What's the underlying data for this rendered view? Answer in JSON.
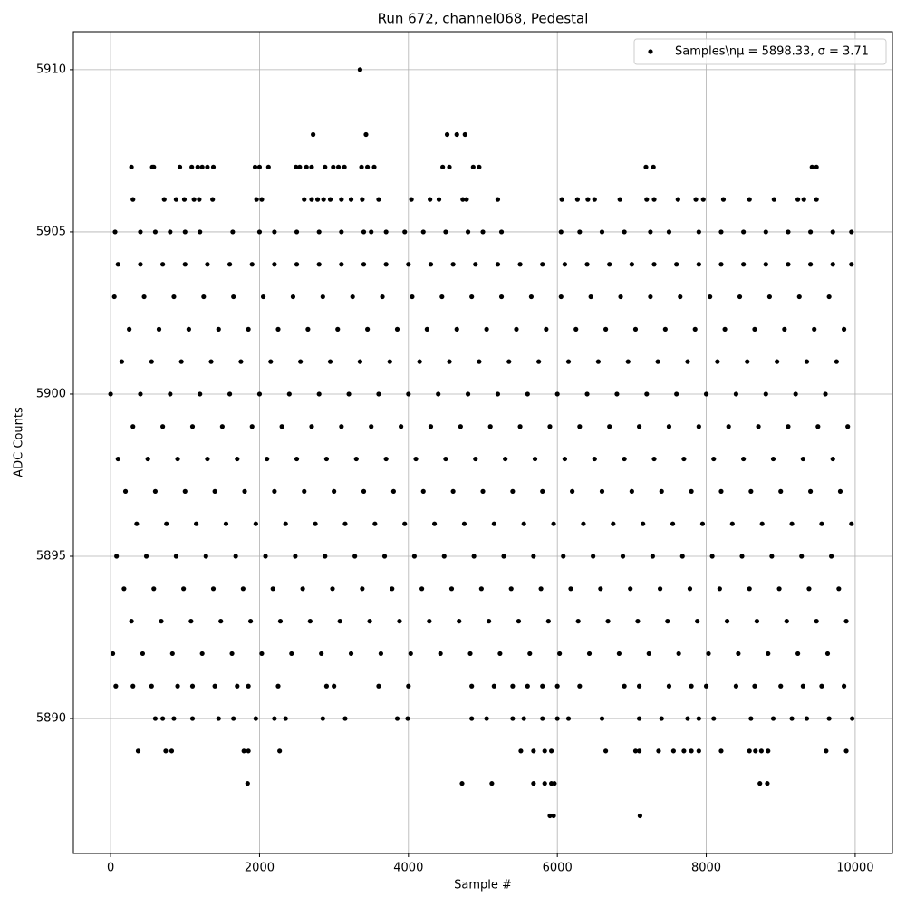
{
  "chart_data": {
    "type": "scatter",
    "title": "Run 672, channel068, Pedestal",
    "x_label": "Sample #",
    "y_label": "ADC Counts",
    "xlim": [
      -500,
      10500
    ],
    "ylim": [
      5885.84,
      5911.17
    ],
    "xticks": [
      0,
      2000,
      4000,
      6000,
      8000,
      10000
    ],
    "yticks": [
      5890,
      5895,
      5900,
      5905,
      5910
    ],
    "grid": true,
    "legend": "upper-right",
    "series": [
      {
        "name": "Samples\\nμ = 5898.33, σ = 3.71",
        "color": "#000000",
        "x": [
          3350,
          2720,
          3430,
          4520,
          4650,
          4760,
          5900,
          5950,
          7110,
          1840,
          4720,
          5120,
          5680,
          5830,
          5920,
          5960,
          8720,
          8820,
          370,
          740,
          820,
          1790,
          1850,
          2270,
          5510,
          5680,
          5830,
          5920,
          6650,
          7050,
          7100,
          7360,
          7560,
          7700,
          7800,
          7900,
          8200,
          8580,
          8660,
          8740,
          8830,
          9610,
          9880,
          280,
          560,
          580,
          930,
          1090,
          1170,
          1230,
          1300,
          1380,
          1940,
          2000,
          2120,
          2490,
          2540,
          2630,
          2700,
          2880,
          2990,
          3060,
          3140,
          3370,
          3450,
          3540,
          4460,
          4550,
          4870,
          4950,
          7190,
          7290,
          9420,
          9480,
          300,
          720,
          880,
          990,
          1120,
          1190,
          1370,
          1960,
          2030,
          2600,
          2700,
          2780,
          2860,
          2950,
          3100,
          3230,
          3380,
          3600,
          4040,
          4290,
          4410,
          4730,
          4780,
          5200,
          6060,
          6270,
          6410,
          6500,
          6840,
          7200,
          7300,
          7620,
          7860,
          7960,
          8230,
          8580,
          8910,
          9230,
          9310,
          9480,
          60,
          400,
          600,
          800,
          1000,
          1200,
          1640,
          2000,
          2200,
          2500,
          2800,
          3100,
          3400,
          3500,
          3700,
          3950,
          4200,
          4500,
          4800,
          5000,
          5250,
          6050,
          6300,
          6600,
          6900,
          7250,
          7500,
          7900,
          8200,
          8500,
          8800,
          9100,
          9400,
          9700,
          9950,
          100,
          400,
          700,
          1000,
          1300,
          1600,
          1900,
          2200,
          2500,
          2800,
          3100,
          3400,
          3700,
          4000,
          4300,
          4600,
          4900,
          5200,
          5500,
          5800,
          6100,
          6400,
          6700,
          7000,
          7300,
          7600,
          7900,
          8200,
          8500,
          8800,
          9100,
          9400,
          9700,
          9950,
          50,
          450,
          850,
          1250,
          1650,
          2050,
          2450,
          2850,
          3250,
          3650,
          4050,
          4450,
          4850,
          5250,
          5650,
          6050,
          6450,
          6850,
          7250,
          7650,
          8050,
          8450,
          8850,
          9250,
          9650,
          250,
          650,
          1050,
          1450,
          1850,
          2250,
          2650,
          3050,
          3450,
          3850,
          4250,
          4650,
          5050,
          5450,
          5850,
          6250,
          6650,
          7050,
          7450,
          7850,
          8250,
          8650,
          9050,
          9450,
          9850,
          150,
          550,
          950,
          1350,
          1750,
          2150,
          2550,
          2950,
          3350,
          3750,
          4150,
          4550,
          4950,
          5350,
          5750,
          6150,
          6550,
          6950,
          7350,
          7750,
          8150,
          8550,
          8950,
          9350,
          9750,
          0,
          400,
          800,
          1200,
          1600,
          2000,
          2400,
          2800,
          3200,
          3600,
          4000,
          4400,
          4800,
          5200,
          5600,
          6000,
          6400,
          6800,
          7200,
          7600,
          8000,
          8400,
          8800,
          9200,
          9600,
          300,
          700,
          1100,
          1500,
          1900,
          2300,
          2700,
          3100,
          3500,
          3900,
          4300,
          4700,
          5100,
          5500,
          5900,
          6300,
          6700,
          7100,
          7500,
          7900,
          8300,
          8700,
          9100,
          9500,
          9900,
          100,
          500,
          900,
          1300,
          1700,
          2100,
          2500,
          2900,
          3300,
          3700,
          4100,
          4500,
          4900,
          5300,
          5700,
          6100,
          6500,
          6900,
          7300,
          7700,
          8100,
          8500,
          8900,
          9300,
          9700,
          200,
          600,
          1000,
          1400,
          1800,
          2200,
          2600,
          3000,
          3400,
          3800,
          4200,
          4600,
          5000,
          5400,
          5800,
          6200,
          6600,
          7000,
          7400,
          7800,
          8200,
          8600,
          9000,
          9400,
          9800,
          350,
          750,
          1150,
          1550,
          1950,
          2350,
          2750,
          3150,
          3550,
          3950,
          4350,
          4750,
          5150,
          5550,
          5950,
          6350,
          6750,
          7150,
          7550,
          7950,
          8350,
          8750,
          9150,
          9550,
          9950,
          80,
          480,
          880,
          1280,
          1680,
          2080,
          2480,
          2880,
          3280,
          3680,
          4080,
          4480,
          4880,
          5280,
          5680,
          6080,
          6480,
          6880,
          7280,
          7680,
          8080,
          8480,
          8880,
          9280,
          9680,
          180,
          580,
          980,
          1380,
          1780,
          2180,
          2580,
          2980,
          3380,
          3780,
          4180,
          4580,
          4980,
          5380,
          5780,
          6180,
          6580,
          6980,
          7380,
          7780,
          8180,
          8580,
          8980,
          9380,
          9780,
          280,
          680,
          1080,
          1480,
          1880,
          2280,
          2680,
          3080,
          3480,
          3880,
          4280,
          4680,
          5080,
          5480,
          5880,
          6280,
          6680,
          7080,
          7480,
          7880,
          8280,
          8680,
          9080,
          9480,
          9880,
          30,
          430,
          830,
          1230,
          1630,
          2030,
          2430,
          2830,
          3230,
          3630,
          4030,
          4430,
          4830,
          5230,
          5630,
          6030,
          6430,
          6830,
          7230,
          7630,
          8030,
          8430,
          8830,
          9230,
          9630,
          70,
          300,
          550,
          900,
          1100,
          1400,
          1700,
          1850,
          2250,
          2900,
          3000,
          3600,
          4000,
          4850,
          5150,
          5400,
          5600,
          5800,
          6000,
          6300,
          6900,
          7100,
          7500,
          7800,
          8000,
          8400,
          8650,
          9000,
          9300,
          9550,
          9850,
          600,
          700,
          850,
          1100,
          1450,
          1650,
          1950,
          2200,
          2350,
          2850,
          3150,
          3850,
          3990,
          4850,
          5050,
          5400,
          5550,
          5800,
          6000,
          6150,
          6600,
          7100,
          7400,
          7750,
          7900,
          8100,
          8600,
          8900,
          9150,
          9350,
          9650,
          9960
        ],
        "values": [
          5910,
          5908,
          5908,
          5908,
          5908,
          5908,
          5887,
          5887,
          5887,
          5888,
          5888,
          5888,
          5888,
          5888,
          5888,
          5888,
          5888,
          5888,
          5889,
          5889,
          5889,
          5889,
          5889,
          5889,
          5889,
          5889,
          5889,
          5889,
          5889,
          5889,
          5889,
          5889,
          5889,
          5889,
          5889,
          5889,
          5889,
          5889,
          5889,
          5889,
          5889,
          5889,
          5889,
          5907,
          5907,
          5907,
          5907,
          5907,
          5907,
          5907,
          5907,
          5907,
          5907,
          5907,
          5907,
          5907,
          5907,
          5907,
          5907,
          5907,
          5907,
          5907,
          5907,
          5907,
          5907,
          5907,
          5907,
          5907,
          5907,
          5907,
          5907,
          5907,
          5907,
          5907,
          5906,
          5906,
          5906,
          5906,
          5906,
          5906,
          5906,
          5906,
          5906,
          5906,
          5906,
          5906,
          5906,
          5906,
          5906,
          5906,
          5906,
          5906,
          5906,
          5906,
          5906,
          5906,
          5906,
          5906,
          5906,
          5906,
          5906,
          5906,
          5906,
          5906,
          5906,
          5906,
          5906,
          5906,
          5906,
          5906,
          5906,
          5906,
          5906,
          5906,
          5905,
          5905,
          5905,
          5905,
          5905,
          5905,
          5905,
          5905,
          5905,
          5905,
          5905,
          5905,
          5905,
          5905,
          5905,
          5905,
          5905,
          5905,
          5905,
          5905,
          5905,
          5905,
          5905,
          5905,
          5905,
          5905,
          5905,
          5905,
          5905,
          5905,
          5905,
          5905,
          5905,
          5905,
          5905,
          5904,
          5904,
          5904,
          5904,
          5904,
          5904,
          5904,
          5904,
          5904,
          5904,
          5904,
          5904,
          5904,
          5904,
          5904,
          5904,
          5904,
          5904,
          5904,
          5904,
          5904,
          5904,
          5904,
          5904,
          5904,
          5904,
          5904,
          5904,
          5904,
          5904,
          5904,
          5904,
          5904,
          5904,
          5903,
          5903,
          5903,
          5903,
          5903,
          5903,
          5903,
          5903,
          5903,
          5903,
          5903,
          5903,
          5903,
          5903,
          5903,
          5903,
          5903,
          5903,
          5903,
          5903,
          5903,
          5903,
          5903,
          5903,
          5903,
          5902,
          5902,
          5902,
          5902,
          5902,
          5902,
          5902,
          5902,
          5902,
          5902,
          5902,
          5902,
          5902,
          5902,
          5902,
          5902,
          5902,
          5902,
          5902,
          5902,
          5902,
          5902,
          5902,
          5902,
          5902,
          5901,
          5901,
          5901,
          5901,
          5901,
          5901,
          5901,
          5901,
          5901,
          5901,
          5901,
          5901,
          5901,
          5901,
          5901,
          5901,
          5901,
          5901,
          5901,
          5901,
          5901,
          5901,
          5901,
          5901,
          5901,
          5900,
          5900,
          5900,
          5900,
          5900,
          5900,
          5900,
          5900,
          5900,
          5900,
          5900,
          5900,
          5900,
          5900,
          5900,
          5900,
          5900,
          5900,
          5900,
          5900,
          5900,
          5900,
          5900,
          5900,
          5900,
          5899,
          5899,
          5899,
          5899,
          5899,
          5899,
          5899,
          5899,
          5899,
          5899,
          5899,
          5899,
          5899,
          5899,
          5899,
          5899,
          5899,
          5899,
          5899,
          5899,
          5899,
          5899,
          5899,
          5899,
          5899,
          5898,
          5898,
          5898,
          5898,
          5898,
          5898,
          5898,
          5898,
          5898,
          5898,
          5898,
          5898,
          5898,
          5898,
          5898,
          5898,
          5898,
          5898,
          5898,
          5898,
          5898,
          5898,
          5898,
          5898,
          5898,
          5897,
          5897,
          5897,
          5897,
          5897,
          5897,
          5897,
          5897,
          5897,
          5897,
          5897,
          5897,
          5897,
          5897,
          5897,
          5897,
          5897,
          5897,
          5897,
          5897,
          5897,
          5897,
          5897,
          5897,
          5897,
          5896,
          5896,
          5896,
          5896,
          5896,
          5896,
          5896,
          5896,
          5896,
          5896,
          5896,
          5896,
          5896,
          5896,
          5896,
          5896,
          5896,
          5896,
          5896,
          5896,
          5896,
          5896,
          5896,
          5896,
          5896,
          5895,
          5895,
          5895,
          5895,
          5895,
          5895,
          5895,
          5895,
          5895,
          5895,
          5895,
          5895,
          5895,
          5895,
          5895,
          5895,
          5895,
          5895,
          5895,
          5895,
          5895,
          5895,
          5895,
          5895,
          5895,
          5894,
          5894,
          5894,
          5894,
          5894,
          5894,
          5894,
          5894,
          5894,
          5894,
          5894,
          5894,
          5894,
          5894,
          5894,
          5894,
          5894,
          5894,
          5894,
          5894,
          5894,
          5894,
          5894,
          5894,
          5894,
          5893,
          5893,
          5893,
          5893,
          5893,
          5893,
          5893,
          5893,
          5893,
          5893,
          5893,
          5893,
          5893,
          5893,
          5893,
          5893,
          5893,
          5893,
          5893,
          5893,
          5893,
          5893,
          5893,
          5893,
          5893,
          5892,
          5892,
          5892,
          5892,
          5892,
          5892,
          5892,
          5892,
          5892,
          5892,
          5892,
          5892,
          5892,
          5892,
          5892,
          5892,
          5892,
          5892,
          5892,
          5892,
          5892,
          5892,
          5892,
          5892,
          5892,
          5891,
          5891,
          5891,
          5891,
          5891,
          5891,
          5891,
          5891,
          5891,
          5891,
          5891,
          5891,
          5891,
          5891,
          5891,
          5891,
          5891,
          5891,
          5891,
          5891,
          5891,
          5891,
          5891,
          5891,
          5891,
          5891,
          5891,
          5891,
          5891,
          5891,
          5891,
          5890,
          5890,
          5890,
          5890,
          5890,
          5890,
          5890,
          5890,
          5890,
          5890,
          5890,
          5890,
          5890,
          5890,
          5890,
          5890,
          5890,
          5890,
          5890,
          5890,
          5890,
          5890,
          5890,
          5890,
          5890,
          5890,
          5890,
          5890,
          5890,
          5890,
          5890,
          5890
        ]
      }
    ]
  }
}
